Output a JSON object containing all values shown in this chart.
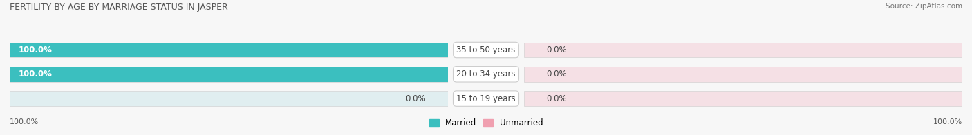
{
  "title": "FERTILITY BY AGE BY MARRIAGE STATUS IN JASPER",
  "source": "Source: ZipAtlas.com",
  "categories": [
    "15 to 19 years",
    "20 to 34 years",
    "35 to 50 years"
  ],
  "married_values": [
    0.0,
    100.0,
    100.0
  ],
  "unmarried_values": [
    0.0,
    0.0,
    0.0
  ],
  "married_color": "#3bbfbf",
  "unmarried_color": "#f0a0b0",
  "bar_bg_left_color": "#e0eef0",
  "bar_bg_right_color": "#f5e0e5",
  "bar_height": 0.62,
  "legend_married": "Married",
  "legend_unmarried": "Unmarried",
  "title_fontsize": 9,
  "source_fontsize": 7.5,
  "label_fontsize": 8.5,
  "tick_fontsize": 8,
  "bg_color": "#f7f7f7",
  "bar_edge_color": "#cccccc",
  "center_label_color": "#ffffff",
  "text_color_dark": "#444444",
  "text_color_light": "#ffffff"
}
